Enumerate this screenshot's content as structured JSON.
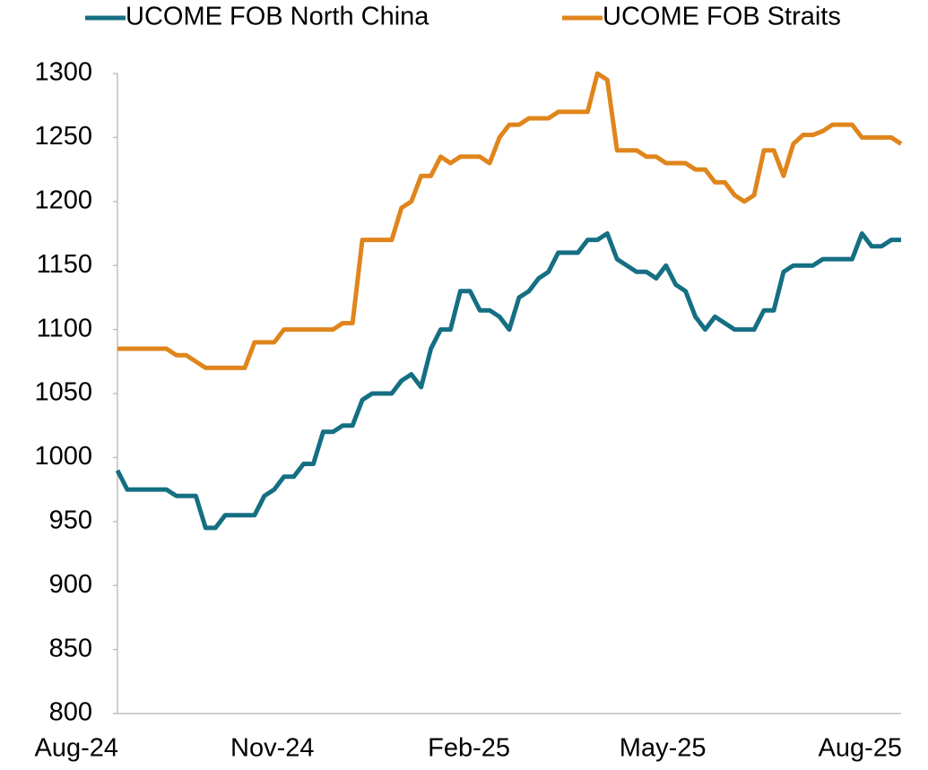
{
  "chart_data": {
    "type": "line",
    "categories": [
      "Aug-24",
      null,
      null,
      null,
      null,
      null,
      null,
      null,
      null,
      null,
      null,
      null,
      null,
      null,
      null,
      null,
      null,
      null,
      null,
      null,
      "Nov-24",
      null,
      null,
      null,
      null,
      null,
      null,
      null,
      null,
      null,
      null,
      null,
      null,
      null,
      null,
      null,
      null,
      null,
      null,
      null,
      "Feb-25",
      null,
      null,
      null,
      null,
      null,
      null,
      null,
      null,
      null,
      null,
      null,
      null,
      null,
      null,
      null,
      null,
      null,
      null,
      null,
      "May-25",
      null,
      null,
      null,
      null,
      null,
      null,
      null,
      null,
      null,
      null,
      null,
      null,
      null,
      null,
      null,
      null,
      null,
      null,
      null,
      "Aug-25"
    ],
    "series": [
      {
        "name": "UCOME FOB North China",
        "color": "#156f82",
        "values": [
          990,
          975,
          975,
          975,
          975,
          975,
          970,
          970,
          970,
          945,
          945,
          955,
          955,
          955,
          955,
          970,
          975,
          985,
          985,
          995,
          995,
          1020,
          1020,
          1025,
          1025,
          1045,
          1050,
          1050,
          1050,
          1060,
          1065,
          1055,
          1085,
          1100,
          1100,
          1130,
          1130,
          1115,
          1115,
          1110,
          1100,
          1125,
          1130,
          1140,
          1145,
          1160,
          1160,
          1160,
          1170,
          1170,
          1175,
          1155,
          1150,
          1145,
          1145,
          1140,
          1150,
          1135,
          1130,
          1110,
          1100,
          1110,
          1105,
          1100,
          1100,
          1100,
          1115,
          1115,
          1145,
          1150,
          1150,
          1150,
          1155,
          1155,
          1155,
          1155,
          1175,
          1165,
          1165,
          1170,
          1170
        ]
      },
      {
        "name": "UCOME FOB Straits",
        "color": "#e0851c",
        "values": [
          1085,
          1085,
          1085,
          1085,
          1085,
          1085,
          1080,
          1080,
          1075,
          1070,
          1070,
          1070,
          1070,
          1070,
          1090,
          1090,
          1090,
          1100,
          1100,
          1100,
          1100,
          1100,
          1100,
          1105,
          1105,
          1170,
          1170,
          1170,
          1170,
          1195,
          1200,
          1220,
          1220,
          1235,
          1230,
          1235,
          1235,
          1235,
          1230,
          1250,
          1260,
          1260,
          1265,
          1265,
          1265,
          1270,
          1270,
          1270,
          1270,
          1300,
          1295,
          1240,
          1240,
          1240,
          1235,
          1235,
          1230,
          1230,
          1230,
          1225,
          1225,
          1215,
          1215,
          1205,
          1200,
          1205,
          1240,
          1240,
          1220,
          1245,
          1252,
          1252,
          1255,
          1260,
          1260,
          1260,
          1250,
          1250,
          1250,
          1250,
          1245
        ]
      }
    ],
    "ylim": [
      800,
      1300
    ],
    "yticks": [
      800,
      850,
      900,
      950,
      1000,
      1050,
      1100,
      1150,
      1200,
      1250,
      1300
    ],
    "grid": false,
    "legend": "top"
  }
}
